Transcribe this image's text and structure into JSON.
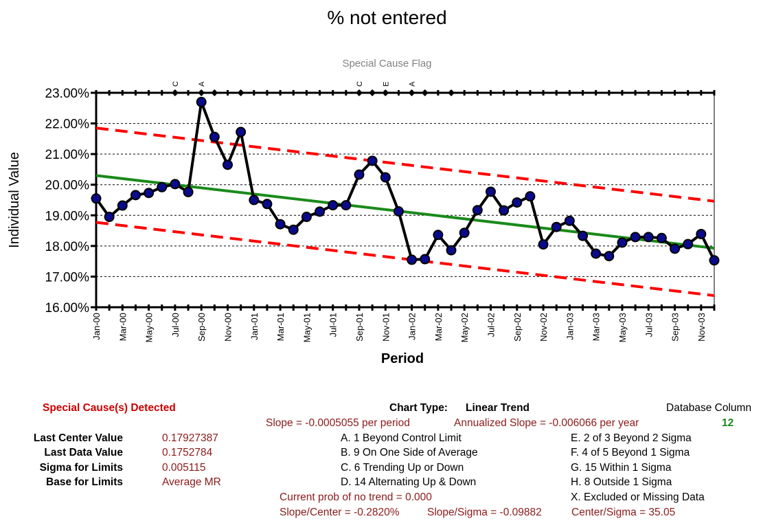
{
  "chart_data": {
    "type": "line",
    "title": "% not entered",
    "subtitle": "Special Cause Flag",
    "xlabel": "Period",
    "ylabel": "Individual Value",
    "ylim": [
      0.16,
      0.23
    ],
    "y_ticks": [
      "16.00%",
      "17.00%",
      "18.00%",
      "19.00%",
      "20.00%",
      "21.00%",
      "22.00%",
      "23.00%"
    ],
    "x_tick_labels": [
      "Jan-00",
      "Mar-00",
      "May-00",
      "Jul-00",
      "Sep-00",
      "Nov-00",
      "Jan-01",
      "Mar-01",
      "May-01",
      "Jul-01",
      "Sep-01",
      "Nov-01",
      "Jan-02",
      "Mar-02",
      "May-02",
      "Jul-02",
      "Sep-02",
      "Nov-02",
      "Jan-03",
      "Mar-03",
      "May-03",
      "Jul-03",
      "Sep-03",
      "Nov-03"
    ],
    "grid": true,
    "series": [
      {
        "role": "data",
        "color": "#000000",
        "marker_color": "#0a0a8c",
        "values": [
          0.1955,
          0.1895,
          0.1932,
          0.1966,
          0.1973,
          0.1992,
          0.2002,
          0.1976,
          0.227,
          0.2156,
          0.2065,
          0.2172,
          0.195,
          0.1937,
          0.1871,
          0.1853,
          0.1895,
          0.1912,
          0.1933,
          0.1933,
          0.2033,
          0.2078,
          0.2024,
          0.1913,
          0.1755,
          0.1757,
          0.1836,
          0.1786,
          0.1843,
          0.1917,
          0.1977,
          0.1916,
          0.1942,
          0.1962,
          0.1805,
          0.1862,
          0.1882,
          0.1833,
          0.1775,
          0.1767,
          0.1811,
          0.1829,
          0.1829,
          0.1826,
          0.1791,
          0.1806,
          0.1839,
          0.1753
        ]
      },
      {
        "role": "center",
        "color": "#1a8a1a",
        "start": 0.203,
        "end": 0.17927
      },
      {
        "role": "ucl",
        "color": "#ff0000",
        "start": 0.2185,
        "end": 0.1946
      },
      {
        "role": "lcl",
        "color": "#ff0000",
        "start": 0.1877,
        "end": 0.1638
      }
    ],
    "flag_points": [
      6,
      8,
      9,
      11,
      20,
      21,
      22,
      24,
      25,
      27
    ],
    "flag_letters": [
      {
        "index": 6,
        "letter": "C"
      },
      {
        "index": 8,
        "letter": "A"
      },
      {
        "index": 20,
        "letter": "C"
      },
      {
        "index": 22,
        "letter": "E"
      },
      {
        "index": 24,
        "letter": "A"
      }
    ]
  },
  "summary": {
    "special_cause": "Special Cause(s) Detected",
    "chart_type_label": "Chart Type:",
    "chart_type_value": "Linear Trend",
    "database_column_label": "Database Column",
    "database_column_value": "12",
    "slope": "Slope = -0.0005055 per period",
    "annualized_slope": "Annualized Slope = -0.006066 per year",
    "stats": [
      {
        "label": "Last Center Value",
        "value": "0.17927387"
      },
      {
        "label": "Last Data Value",
        "value": "0.1752784"
      },
      {
        "label": "Sigma for Limits",
        "value": "0.005115"
      },
      {
        "label": "Base for Limits",
        "value": "Average MR"
      }
    ],
    "rules_left": [
      "A. 1 Beyond Control Limit",
      "B. 9 On One Side of Average",
      "C. 6 Trending Up or Down",
      "D. 14 Alternating  Up & Down"
    ],
    "rules_right": [
      "E. 2 of 3 Beyond 2 Sigma",
      "F. 4 of 5 Beyond 1 Sigma",
      "G. 15 Within 1 Sigma",
      "H. 8 Outside 1 Sigma",
      "X. Excluded or Missing Data"
    ],
    "prob_no_trend": "Current prob of no trend = 0.000",
    "slope_center": "Slope/Center = -0.2820%",
    "slope_sigma": "Slope/Sigma = -0.09882",
    "center_sigma": "Center/Sigma = 35.05"
  }
}
